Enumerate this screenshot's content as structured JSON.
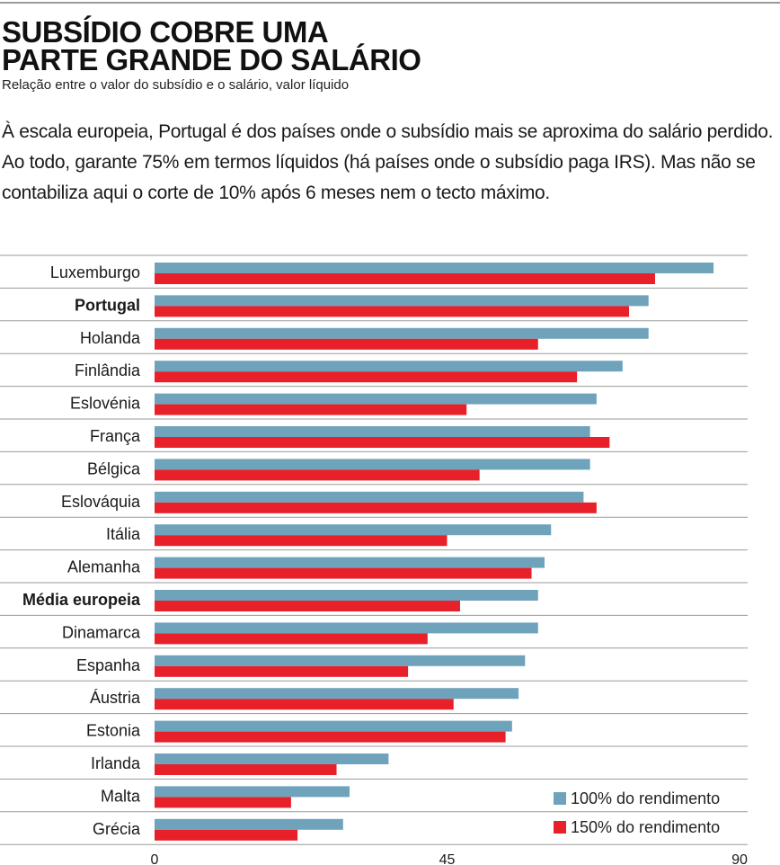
{
  "header": {
    "title": "SUBSÍDIO COBRE UMA\nPARTE GRANDE DO SALÁRIO",
    "subtitle": "Relação entre o valor do subsídio e o salário, valor líquido",
    "lede": "À escala europeia, Portugal é dos países onde o subsídio mais se aproxima do salário perdido. Ao todo, garante 75% em termos líquidos (há países onde o subsídio paga IRS). Mas não se contabiliza aqui o corte de 10% após 6 meses nem o tecto máximo."
  },
  "colors": {
    "series_100": "#6fa3bb",
    "series_150": "#e8202a",
    "rule": "#9a9a9a",
    "text": "#1a1a1a"
  },
  "legend": {
    "item_100": "100% do rendimento",
    "item_150": "150% do rendimento"
  },
  "chart_data": {
    "type": "bar",
    "orientation": "horizontal",
    "categories": [
      "Luxemburgo",
      "Portugal",
      "Holanda",
      "Finlândia",
      "Eslovénia",
      "França",
      "Bélgica",
      "Eslováquia",
      "Itália",
      "Alemanha",
      "Média europeia",
      "Dinamarca",
      "Espanha",
      "Áustria",
      "Estonia",
      "Irlanda",
      "Malta",
      "Grécia"
    ],
    "highlighted_categories": [
      "Portugal",
      "Média europeia"
    ],
    "series": [
      {
        "name": "100% do rendimento",
        "values": [
          86,
          76,
          76,
          72,
          68,
          67,
          67,
          66,
          61,
          60,
          59,
          59,
          57,
          56,
          55,
          36,
          30,
          29
        ]
      },
      {
        "name": "150% do rendimento",
        "values": [
          77,
          73,
          59,
          65,
          48,
          70,
          50,
          68,
          45,
          58,
          47,
          42,
          39,
          46,
          54,
          28,
          21,
          22
        ]
      }
    ],
    "x_ticks": [
      0,
      45,
      90
    ],
    "xlim": [
      0,
      90
    ],
    "grid": false,
    "legend_position": "bottom-right"
  }
}
